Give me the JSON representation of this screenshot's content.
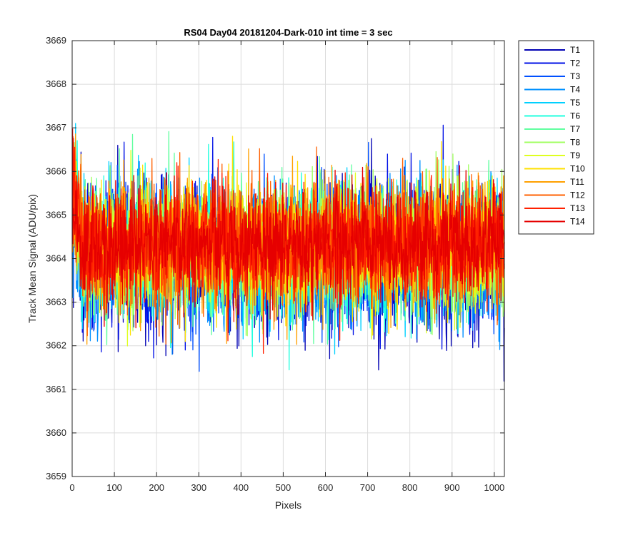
{
  "chart_data": {
    "type": "line",
    "title": "RS04 Day04 20181204-Dark-010 int time = 3 sec",
    "xlabel": "Pixels",
    "ylabel": "Track Mean Signal (ADU/pix)",
    "xlim": [
      0,
      1024
    ],
    "ylim": [
      3659,
      3669
    ],
    "x_ticks": [
      0,
      100,
      200,
      300,
      400,
      500,
      600,
      700,
      800,
      900,
      1000
    ],
    "y_ticks": [
      3659,
      3660,
      3661,
      3662,
      3663,
      3664,
      3665,
      3666,
      3667,
      3668,
      3669
    ],
    "grid": true,
    "legend_position": "outside-top-right",
    "x_range": [
      1,
      1024
    ],
    "series": [
      {
        "name": "T1",
        "color": "#0000b3",
        "mean": 3664.0,
        "spread": 1.15
      },
      {
        "name": "T2",
        "color": "#0010e6",
        "mean": 3664.05,
        "spread": 1.1
      },
      {
        "name": "T3",
        "color": "#0050ff",
        "mean": 3664.1,
        "spread": 1.05
      },
      {
        "name": "T4",
        "color": "#0090ff",
        "mean": 3664.1,
        "spread": 1.05
      },
      {
        "name": "T5",
        "color": "#00d0ff",
        "mean": 3664.15,
        "spread": 1.0
      },
      {
        "name": "T6",
        "color": "#20ffdf",
        "mean": 3664.15,
        "spread": 1.0
      },
      {
        "name": "T7",
        "color": "#60ff9f",
        "mean": 3664.2,
        "spread": 1.0
      },
      {
        "name": "T8",
        "color": "#a0ff60",
        "mean": 3664.2,
        "spread": 1.0
      },
      {
        "name": "T9",
        "color": "#dfff20",
        "mean": 3664.25,
        "spread": 0.95
      },
      {
        "name": "T10",
        "color": "#ffe000",
        "mean": 3664.25,
        "spread": 0.95
      },
      {
        "name": "T11",
        "color": "#ffa000",
        "mean": 3664.3,
        "spread": 0.95
      },
      {
        "name": "T12",
        "color": "#ff6000",
        "mean": 3664.3,
        "spread": 0.9
      },
      {
        "name": "T13",
        "color": "#ff2000",
        "mean": 3664.35,
        "spread": 0.9
      },
      {
        "name": "T14",
        "color": "#e60000",
        "mean": 3664.35,
        "spread": 0.85
      }
    ]
  }
}
